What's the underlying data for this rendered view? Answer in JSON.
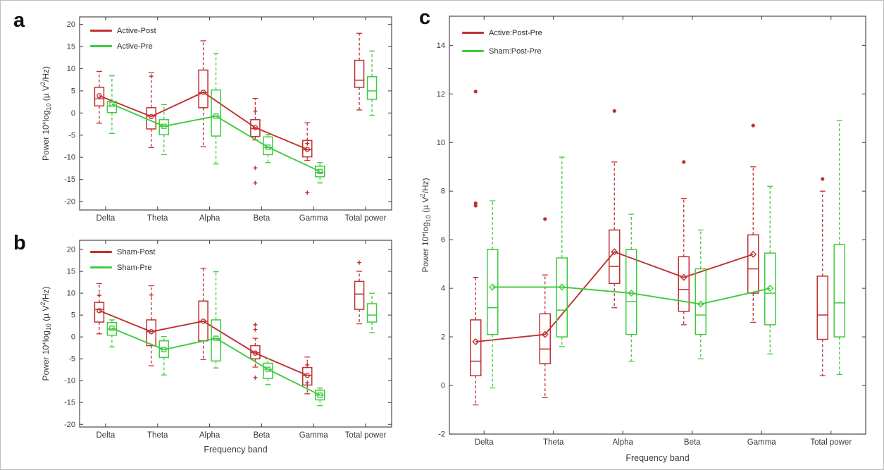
{
  "figure": {
    "background": "#ffffff",
    "border_color": "#bdbdbd"
  },
  "colors": {
    "red": "#c03030",
    "green": "#3ecb3e",
    "axis": "#4a4a4a",
    "text": "#3a3a3a"
  },
  "ylabel_parts": {
    "prefix": "Power 10*log",
    "sub": "10",
    "mid": " (µ V",
    "sup": "2",
    "suffix": "/Hz)"
  },
  "chart_data": [
    {
      "panel": "a",
      "type": "boxplot",
      "categories": [
        "Delta",
        "Theta",
        "Alpha",
        "Beta",
        "Gamma",
        "Total power"
      ],
      "xlabel": "",
      "ylabel": "Power 10*log10 (µ V2/Hz)",
      "ylim": [
        -21.9,
        21.7
      ],
      "yticks": [
        -20,
        -15,
        -10,
        -5,
        0,
        5,
        10,
        15,
        20
      ],
      "grid": false,
      "legend_position": "top-left",
      "mean_line_span": 5,
      "series": [
        {
          "name": "Active-Post",
          "color": "#c03030",
          "mean_marker": "circle",
          "outlier_marker": "plus",
          "boxes": [
            {
              "lo": -2.3,
              "q1": 1.6,
              "med": 3.2,
              "q3": 5.8,
              "hi": 9.4,
              "mean": 3.9,
              "outliers": []
            },
            {
              "lo": -7.8,
              "q1": -3.6,
              "med": -0.7,
              "q3": 1.2,
              "hi": 9.1,
              "mean": -0.8,
              "outliers": [
                8.3
              ]
            },
            {
              "lo": -7.6,
              "q1": 1.2,
              "med": 4.6,
              "q3": 9.7,
              "hi": 16.3,
              "mean": 4.7,
              "outliers": []
            },
            {
              "lo": -6.1,
              "q1": -5.3,
              "med": -3.5,
              "q3": -1.5,
              "hi": 3.3,
              "mean": -3.3,
              "outliers": [
                0.4,
                -12.4,
                -15.8
              ]
            },
            {
              "lo": -10.7,
              "q1": -9.9,
              "med": -8.3,
              "q3": -6.2,
              "hi": -2.2,
              "mean": -8.2,
              "outliers": [
                -6.9,
                -18.0
              ]
            },
            {
              "lo": 0.7,
              "q1": 5.8,
              "med": 7.4,
              "q3": 11.9,
              "hi": 18.0,
              "mean": null,
              "outliers": []
            }
          ]
        },
        {
          "name": "Active-Pre",
          "color": "#3ecb3e",
          "mean_marker": "square",
          "outlier_marker": "plus",
          "boxes": [
            {
              "lo": -4.6,
              "q1": 0.1,
              "med": 1.6,
              "q3": 2.6,
              "hi": 8.4,
              "mean": 2.0,
              "outliers": []
            },
            {
              "lo": -9.4,
              "q1": -4.9,
              "med": -3.0,
              "q3": -1.5,
              "hi": 1.9,
              "mean": -3.0,
              "outliers": []
            },
            {
              "lo": -11.5,
              "q1": -5.2,
              "med": -0.7,
              "q3": 5.2,
              "hi": 13.4,
              "mean": -0.7,
              "outliers": []
            },
            {
              "lo": -11.2,
              "q1": -9.4,
              "med": -7.8,
              "q3": -5.4,
              "hi": -4.9,
              "mean": -7.7,
              "outliers": []
            },
            {
              "lo": -15.8,
              "q1": -14.4,
              "med": -13.4,
              "q3": -12.0,
              "hi": -11.2,
              "mean": -13.2,
              "outliers": []
            },
            {
              "lo": -0.6,
              "q1": 3.1,
              "med": 5.0,
              "q3": 8.2,
              "hi": 14.0,
              "mean": null,
              "outliers": []
            }
          ]
        }
      ]
    },
    {
      "panel": "b",
      "type": "boxplot",
      "categories": [
        "Delta",
        "Theta",
        "Alpha",
        "Beta",
        "Gamma",
        "Total power"
      ],
      "xlabel": "Frequency band",
      "ylabel": "Power 10*log10 (µ V2/Hz)",
      "ylim": [
        -20.6,
        22.1
      ],
      "yticks": [
        -20,
        -15,
        -10,
        -5,
        0,
        5,
        10,
        15,
        20
      ],
      "grid": false,
      "legend_position": "top-left",
      "mean_line_span": 5,
      "series": [
        {
          "name": "Sham-Post",
          "color": "#c03030",
          "mean_marker": "circle",
          "outlier_marker": "plus",
          "boxes": [
            {
              "lo": 0.7,
              "q1": 3.4,
              "med": 6.3,
              "q3": 7.9,
              "hi": 12.2,
              "mean": 6.0,
              "outliers": [
                9.5
              ]
            },
            {
              "lo": -6.6,
              "q1": -2.0,
              "med": 1.2,
              "q3": 3.9,
              "hi": 11.7,
              "mean": 1.2,
              "outliers": [
                9.6
              ]
            },
            {
              "lo": -5.2,
              "q1": -0.9,
              "med": 3.6,
              "q3": 8.2,
              "hi": 15.7,
              "mean": 3.6,
              "outliers": []
            },
            {
              "lo": -6.9,
              "q1": -5.0,
              "med": -3.6,
              "q3": -2.0,
              "hi": -0.3,
              "mean": -3.7,
              "outliers": [
                2.8,
                1.7,
                -9.3
              ]
            },
            {
              "lo": -13.0,
              "q1": -11.0,
              "med": -8.8,
              "q3": -7.0,
              "hi": -4.6,
              "mean": -8.8,
              "outliers": [
                -6.4,
                -10.5
              ]
            },
            {
              "lo": 3.0,
              "q1": 6.3,
              "med": 9.8,
              "q3": 12.7,
              "hi": 15.0,
              "mean": null,
              "outliers": [
                17.0
              ]
            }
          ]
        },
        {
          "name": "Sham-Pre",
          "color": "#3ecb3e",
          "mean_marker": "square",
          "outlier_marker": "plus",
          "boxes": [
            {
              "lo": -2.3,
              "q1": 0.4,
              "med": 1.8,
              "q3": 3.3,
              "hi": 3.9,
              "mean": 2.0,
              "outliers": []
            },
            {
              "lo": -8.7,
              "q1": -4.7,
              "med": -2.8,
              "q3": -0.9,
              "hi": 0.1,
              "mean": -2.9,
              "outliers": []
            },
            {
              "lo": -7.1,
              "q1": -5.5,
              "med": -0.4,
              "q3": 3.9,
              "hi": 14.9,
              "mean": -0.3,
              "outliers": []
            },
            {
              "lo": -10.9,
              "q1": -9.5,
              "med": -7.4,
              "q3": -6.0,
              "hi": -5.0,
              "mean": -7.4,
              "outliers": []
            },
            {
              "lo": -15.7,
              "q1": -14.4,
              "med": -13.3,
              "q3": -12.2,
              "hi": -11.7,
              "mean": -13.3,
              "outliers": []
            },
            {
              "lo": 0.95,
              "q1": 3.4,
              "med": 5.0,
              "q3": 7.6,
              "hi": 10.0,
              "mean": null,
              "outliers": []
            }
          ]
        }
      ]
    },
    {
      "panel": "c",
      "type": "boxplot",
      "categories": [
        "Delta",
        "Theta",
        "Alpha",
        "Beta",
        "Gamma",
        "Total power"
      ],
      "xlabel": "Frequency band",
      "ylabel": "Power 10*log10 (µ V2/Hz)",
      "ylim": [
        -2,
        15.2
      ],
      "yticks": [
        -2,
        0,
        2,
        4,
        6,
        8,
        10,
        12,
        14
      ],
      "grid": false,
      "legend_position": "top-left",
      "mean_line_span": 5,
      "series": [
        {
          "name": "Active:Post-Pre",
          "color": "#c03030",
          "mean_marker": "diamond",
          "outlier_marker": "dot",
          "boxes": [
            {
              "lo": -0.8,
              "q1": 0.4,
              "med": 1.0,
              "q3": 2.7,
              "hi": 4.45,
              "mean": 1.8,
              "outliers": [
                12.1,
                7.5,
                7.4
              ]
            },
            {
              "lo": -0.5,
              "q1": 0.9,
              "med": 1.5,
              "q3": 2.95,
              "hi": 4.55,
              "mean": 2.1,
              "outliers": [
                6.85
              ]
            },
            {
              "lo": 3.2,
              "q1": 4.2,
              "med": 4.9,
              "q3": 6.4,
              "hi": 9.2,
              "mean": 5.5,
              "outliers": [
                11.3
              ]
            },
            {
              "lo": 2.5,
              "q1": 3.05,
              "med": 3.95,
              "q3": 5.3,
              "hi": 7.7,
              "mean": 4.45,
              "outliers": [
                9.2
              ]
            },
            {
              "lo": 2.6,
              "q1": 3.8,
              "med": 4.8,
              "q3": 6.2,
              "hi": 9.0,
              "mean": 5.4,
              "outliers": [
                10.7
              ]
            },
            {
              "lo": 0.4,
              "q1": 1.9,
              "med": 2.9,
              "q3": 4.5,
              "hi": 8.0,
              "mean": null,
              "outliers": [
                8.5
              ]
            }
          ]
        },
        {
          "name": "Sham:Post-Pre",
          "color": "#3ecb3e",
          "mean_marker": "diamond",
          "outlier_marker": "dot",
          "boxes": [
            {
              "lo": -0.1,
              "q1": 2.1,
              "med": 3.2,
              "q3": 5.6,
              "hi": 7.6,
              "mean": 4.05,
              "outliers": []
            },
            {
              "lo": 1.6,
              "q1": 2.0,
              "med": 3.1,
              "q3": 5.25,
              "hi": 9.4,
              "mean": 4.05,
              "outliers": []
            },
            {
              "lo": 1.0,
              "q1": 2.1,
              "med": 3.45,
              "q3": 5.6,
              "hi": 7.05,
              "mean": 3.8,
              "outliers": []
            },
            {
              "lo": 1.1,
              "q1": 2.1,
              "med": 2.9,
              "q3": 4.8,
              "hi": 6.4,
              "mean": 3.35,
              "outliers": []
            },
            {
              "lo": 1.3,
              "q1": 2.5,
              "med": 3.8,
              "q3": 5.45,
              "hi": 8.2,
              "mean": 4.0,
              "outliers": []
            },
            {
              "lo": 0.45,
              "q1": 2.0,
              "med": 3.4,
              "q3": 5.8,
              "hi": 10.9,
              "mean": null,
              "outliers": []
            }
          ]
        }
      ]
    }
  ]
}
